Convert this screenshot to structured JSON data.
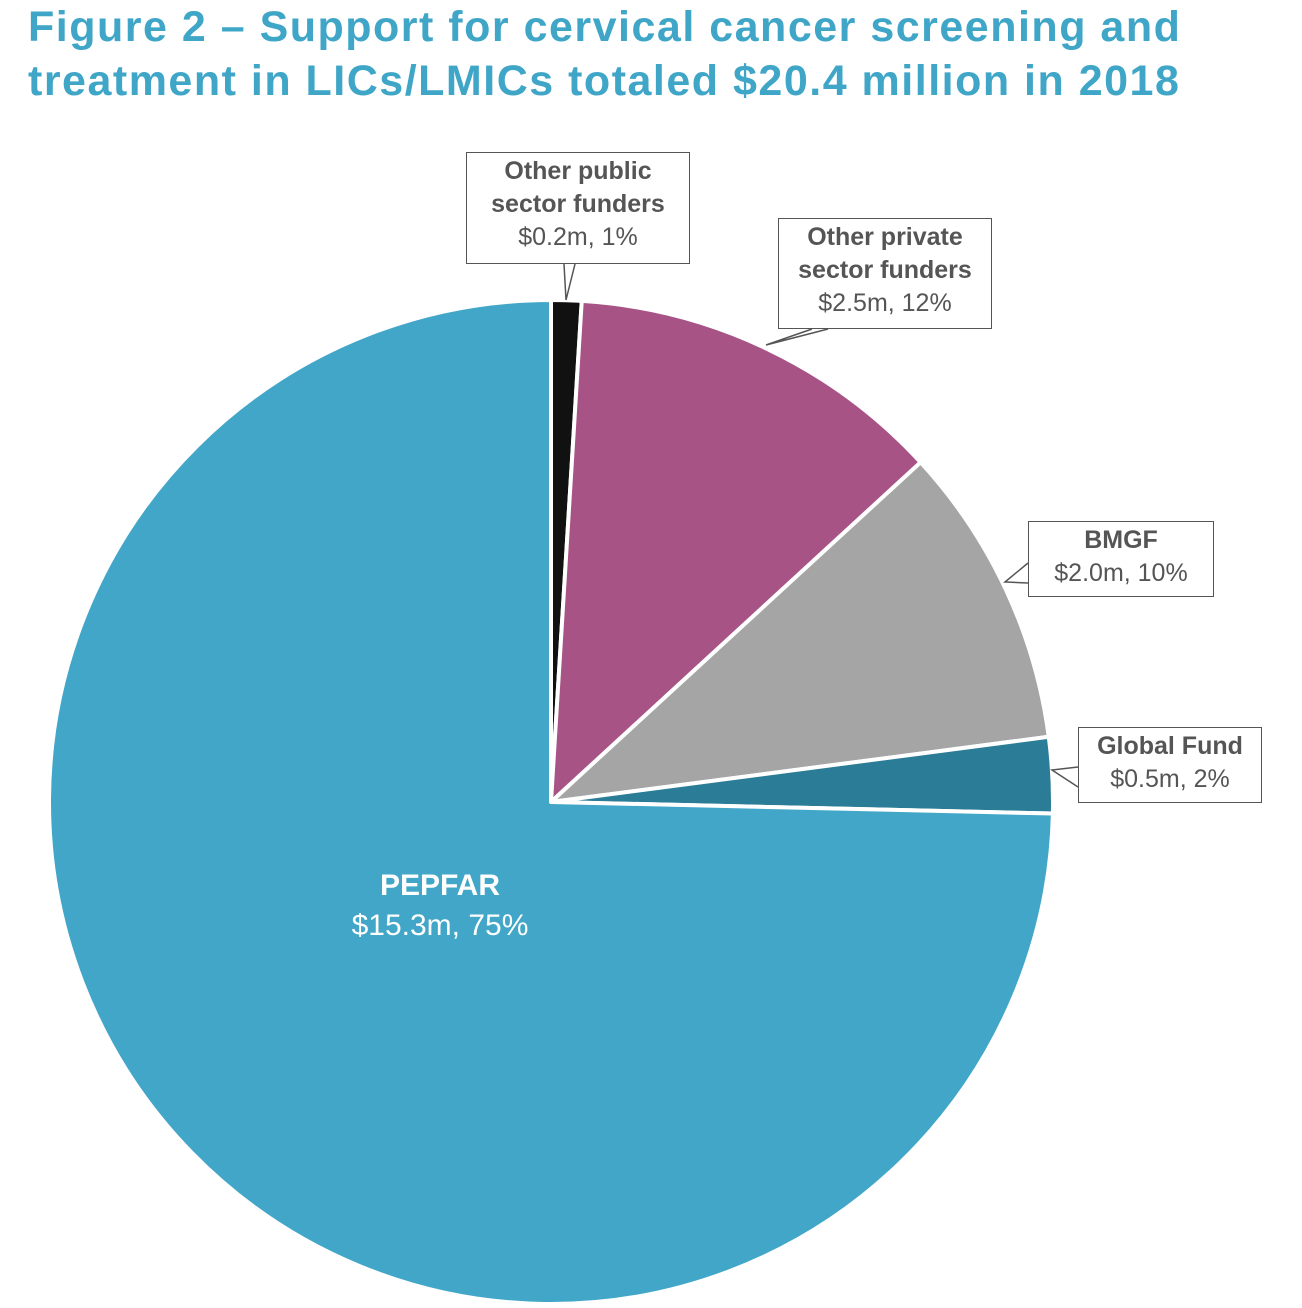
{
  "title": {
    "line1": "Figure 2 – Support for cervical cancer screening and",
    "line2": "treatment in LICs/LMICs totaled $20.4 million in 2018"
  },
  "colors": {
    "title": "#3fa6c8",
    "pepfar": "#41a6c7",
    "other_public": "#111111",
    "other_private": "#a85386",
    "bmgf": "#a5a5a5",
    "global_fund": "#2b7c96"
  },
  "chart_data": {
    "type": "pie",
    "title": "Figure 2 – Support for cervical cancer screening and treatment in LICs/LMICs totaled $20.4 million in 2018",
    "unit": "$ million",
    "total": 20.4,
    "slices": [
      {
        "name_lines": [
          "Other public",
          "sector funders"
        ],
        "value": 0.2,
        "percent": 1,
        "label": "$0.2m, 1%",
        "color": "#111111"
      },
      {
        "name_lines": [
          "Other private",
          "sector funders"
        ],
        "value": 2.5,
        "percent": 12,
        "label": "$2.5m, 12%",
        "color": "#a85386"
      },
      {
        "name_lines": [
          "BMGF"
        ],
        "value": 2.0,
        "percent": 10,
        "label": "$2.0m, 10%",
        "color": "#a5a5a5"
      },
      {
        "name_lines": [
          "Global Fund"
        ],
        "value": 0.5,
        "percent": 2,
        "label": "$0.5m, 2%",
        "color": "#2b7c96"
      },
      {
        "name_lines": [
          "PEPFAR"
        ],
        "value": 15.3,
        "percent": 75,
        "label": "$15.3m, 75%",
        "color": "#41a6c7"
      }
    ]
  }
}
